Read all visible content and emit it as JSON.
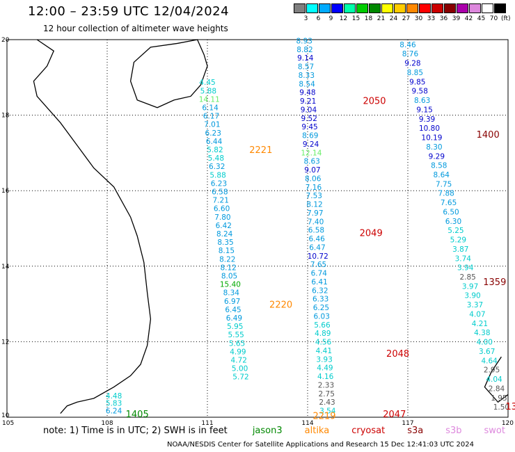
{
  "header": {
    "title": "12:00 – 23:59 UTC 12/04/2024",
    "subtitle": "12 hour collection of altimeter wave heights"
  },
  "colorbar": {
    "colors": [
      "#808080",
      "#00ffff",
      "#00aaff",
      "#0000ff",
      "#00ffaa",
      "#00cc00",
      "#008800",
      "#ffff00",
      "#ffcc00",
      "#ff8800",
      "#ff0000",
      "#cc0000",
      "#880000",
      "#aa00aa",
      "#dd88dd",
      "#ffffff",
      "#000000"
    ],
    "labels": [
      "3",
      "6",
      "9",
      "12",
      "15",
      "18",
      "21",
      "24",
      "27",
      "30",
      "33",
      "36",
      "39",
      "42",
      "45",
      "70"
    ],
    "unit": "(ft)"
  },
  "chart_data": {
    "type": "scatter",
    "xlim": [
      105,
      120
    ],
    "ylim": [
      10,
      20
    ],
    "x_ticks": [
      "105",
      "108",
      "111",
      "114",
      "117",
      "120"
    ],
    "y_ticks": [
      "20",
      "18",
      "16",
      "14",
      "12",
      "10"
    ],
    "grid": true,
    "tracks": [
      {
        "label": "2221",
        "label_color": "#ff8800",
        "x0": 111.0,
        "y0": 18.8,
        "x1": 112.0,
        "y1": 11.0,
        "values": [
          "4.45",
          "5.88",
          "14.11",
          "6.14",
          "6.17",
          "7.01",
          "6.23",
          "6.44",
          "5.82",
          "5.48",
          "6.32",
          "5.88",
          "6.23",
          "6.58",
          "7.21",
          "6.60",
          "7.80",
          "6.42",
          "8.24",
          "8.35",
          "8.15",
          "8.22",
          "8.12",
          "8.05",
          "15.40",
          "8.34",
          "6.97",
          "6.45",
          "6.49",
          "5.95",
          "5.55",
          "5.65",
          "4.99",
          "4.72",
          "5.00",
          "5.72"
        ]
      },
      {
        "label": "2220",
        "label_color": "#ff8800"
      },
      {
        "label": "2219",
        "label_color": "#ff8800"
      },
      {
        "label": "2050",
        "label_color": "#cc0000",
        "x0": 113.9,
        "y0": 19.9,
        "x1": 114.6,
        "y1": 10.1,
        "values": [
          "8.93",
          "8.82",
          "9.14",
          "8.57",
          "8.33",
          "8.54",
          "9.48",
          "9.21",
          "9.04",
          "9.52",
          "9.45",
          "8.69",
          "9.24",
          "12.14",
          "8.63",
          "9.07",
          "8.06",
          "7.16",
          "7.53",
          "8.12",
          "7.97",
          "7.40",
          "6.58",
          "6.46",
          "6.47",
          "10.72",
          "7.65",
          "6.74",
          "6.41",
          "6.32",
          "6.33",
          "6.25",
          "6.03",
          "5.66",
          "4.89",
          "4.56",
          "4.41",
          "3.93",
          "4.49",
          "4.16",
          "2.33",
          "2.75",
          "2.43",
          "3.54"
        ]
      },
      {
        "label": "2049",
        "label_color": "#cc0000"
      },
      {
        "label": "2048",
        "label_color": "#cc0000"
      },
      {
        "label": "2047",
        "label_color": "#cc0000"
      },
      {
        "label": "1400",
        "label_color": "#880000",
        "x0": 117.0,
        "y0": 19.8,
        "x1": 119.8,
        "y1": 10.2,
        "values": [
          "8.46",
          "8.76",
          "9.28",
          "8.85",
          "9.85",
          "9.58",
          "8.63",
          "9.15",
          "9.39",
          "10.80",
          "10.19",
          "8.30",
          "9.29",
          "8.58",
          "8.64",
          "7.75",
          "7.88",
          "7.65",
          "6.50",
          "6.30",
          "5.25",
          "5.29",
          "3.87",
          "3.74",
          "3.94",
          "2.85",
          "3.97",
          "3.90",
          "3.37",
          "4.07",
          "4.21",
          "4.38",
          "4.00",
          "3.67",
          "4.64",
          "2.95",
          "4.04",
          "2.84",
          "1.95",
          "1.50"
        ]
      },
      {
        "label": "1359",
        "label_color": "#880000"
      },
      {
        "label": "1405",
        "label_color": "#008800",
        "values": [
          "4.48",
          "5.83",
          "6.24"
        ]
      },
      {
        "label": "13",
        "label_color": "#cc0000"
      }
    ]
  },
  "legend": {
    "note": "note:  1) Time is in UTC; 2) SWH is in feet",
    "satellites": [
      {
        "name": "jason3",
        "color": "#008800"
      },
      {
        "name": "altika",
        "color": "#ff8800"
      },
      {
        "name": "cryosat",
        "color": "#cc0000"
      },
      {
        "name": "s3a",
        "color": "#880000"
      },
      {
        "name": "s3b",
        "color": "#dd88dd"
      },
      {
        "name": "swot",
        "color": "#dd88dd"
      }
    ]
  },
  "footer": {
    "credit": "NOAA/NESDIS Center for Satellite Applications and Research   15 Dec 12:41:03 UTC 2024"
  }
}
